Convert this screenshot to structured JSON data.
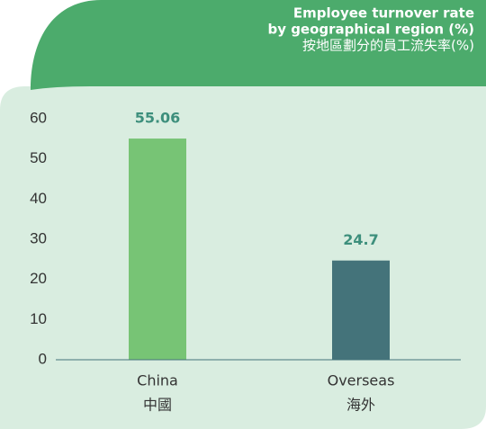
{
  "chart_data": {
    "type": "bar",
    "title": [
      "Employee turnover rate",
      "by geographical region (%)"
    ],
    "subtitle": "按地區劃分的員工流失率(%)",
    "categories": [
      "China",
      "Overseas"
    ],
    "categories_zh": [
      "中國",
      "海外"
    ],
    "values": [
      55.06,
      24.7
    ],
    "colors": [
      "#77c475",
      "#44737a"
    ],
    "ylim": [
      0,
      60
    ],
    "yticks": [
      0,
      10,
      20,
      30,
      40,
      50,
      60
    ],
    "grid": false
  }
}
